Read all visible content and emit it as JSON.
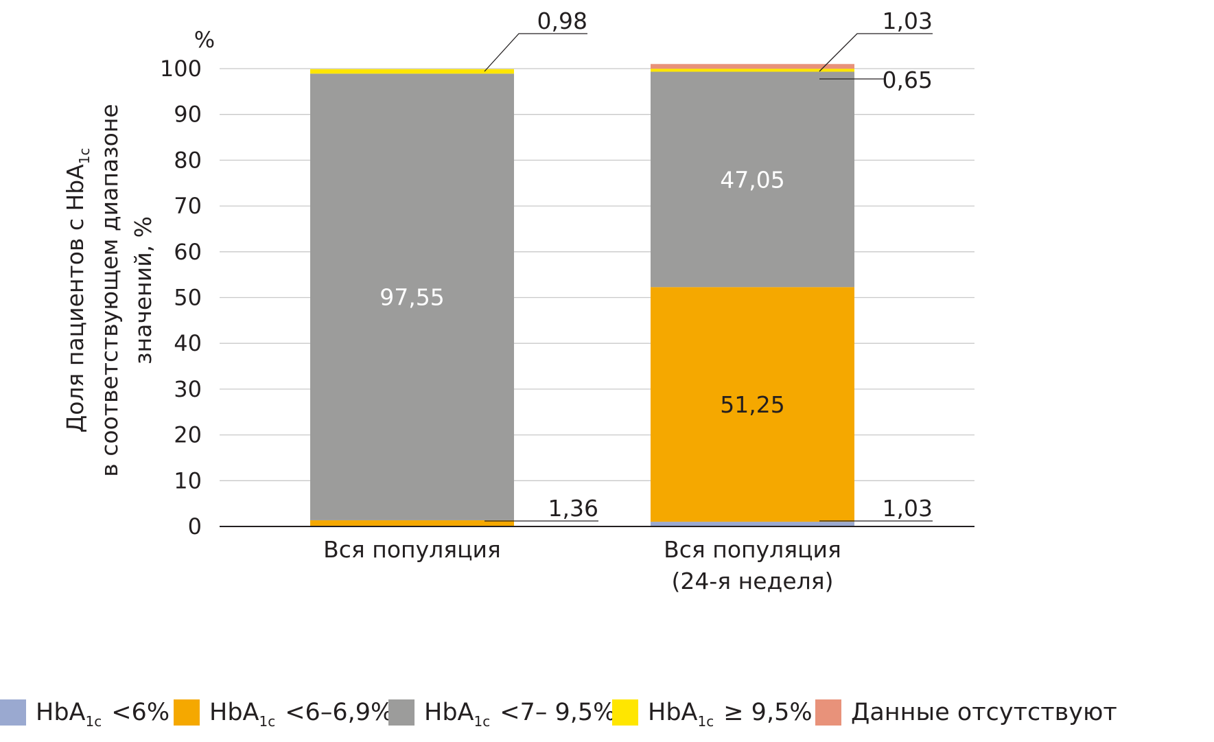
{
  "chart_data": {
    "type": "bar",
    "stacked": true,
    "categories": [
      [
        "Вся популяция"
      ],
      [
        "Вся популяция",
        "(24-я неделя)"
      ]
    ],
    "series": [
      {
        "name": "HbA1c <6%",
        "legend_main": "HbA",
        "legend_sub": "1c",
        "legend_suffix": "<6%",
        "color": "#9aa9d0",
        "values": [
          0,
          1.03
        ]
      },
      {
        "name": "HbA1c <6–6,9%",
        "legend_main": "HbA",
        "legend_sub": "1c",
        "legend_suffix": "<6–6,9%",
        "color": "#f5a800",
        "values": [
          1.36,
          51.25
        ]
      },
      {
        "name": "HbA1c <7– 9,5%",
        "legend_main": "HbA",
        "legend_sub": "1c",
        "legend_suffix": "<7– 9,5%",
        "color": "#9c9c9b",
        "values": [
          97.55,
          47.05
        ]
      },
      {
        "name": "HbA1c ≥ 9,5%",
        "legend_main": "HbA",
        "legend_sub": "1c",
        "legend_suffix": "≥ 9,5%",
        "color": "#ffe600",
        "values": [
          0.98,
          0.65
        ]
      },
      {
        "name": "Данные отсутствуют",
        "legend_main": "Данные отсутствуют",
        "legend_sub": "",
        "legend_suffix": "",
        "color": "#e8927a",
        "values": [
          0,
          1.03
        ]
      }
    ],
    "inside_labels": [
      {
        "category": 0,
        "series": 2,
        "text": "97,55",
        "color": "#ffffff"
      },
      {
        "category": 1,
        "series": 2,
        "text": "47,05",
        "color": "#ffffff"
      },
      {
        "category": 1,
        "series": 1,
        "text": "51,25",
        "color": "#231f20"
      }
    ],
    "callout_labels": [
      {
        "category": 0,
        "series": 3,
        "text": "0,98"
      },
      {
        "category": 0,
        "series": 1,
        "text": "1,36"
      },
      {
        "category": 1,
        "series": 4,
        "text": "1,03"
      },
      {
        "category": 1,
        "series": 3,
        "text": "0,65"
      },
      {
        "category": 1,
        "series": 0,
        "text": "1,03"
      }
    ],
    "y_axis": {
      "unit": "%",
      "ticks": [
        0,
        10,
        20,
        30,
        40,
        50,
        60,
        70,
        80,
        90,
        100
      ],
      "tick_labels": [
        "0",
        "10",
        "20",
        "30",
        "40",
        "50",
        "60",
        "70",
        "80",
        "90",
        "100"
      ],
      "ylim": [
        0,
        100
      ],
      "label_line1_main": "Доля пациентов с HbA",
      "label_line1_sub": "1c",
      "label_line2": "в соответствующем диапазоне",
      "label_line3": "значений, %"
    },
    "grid": true,
    "legend_position": "bottom"
  }
}
